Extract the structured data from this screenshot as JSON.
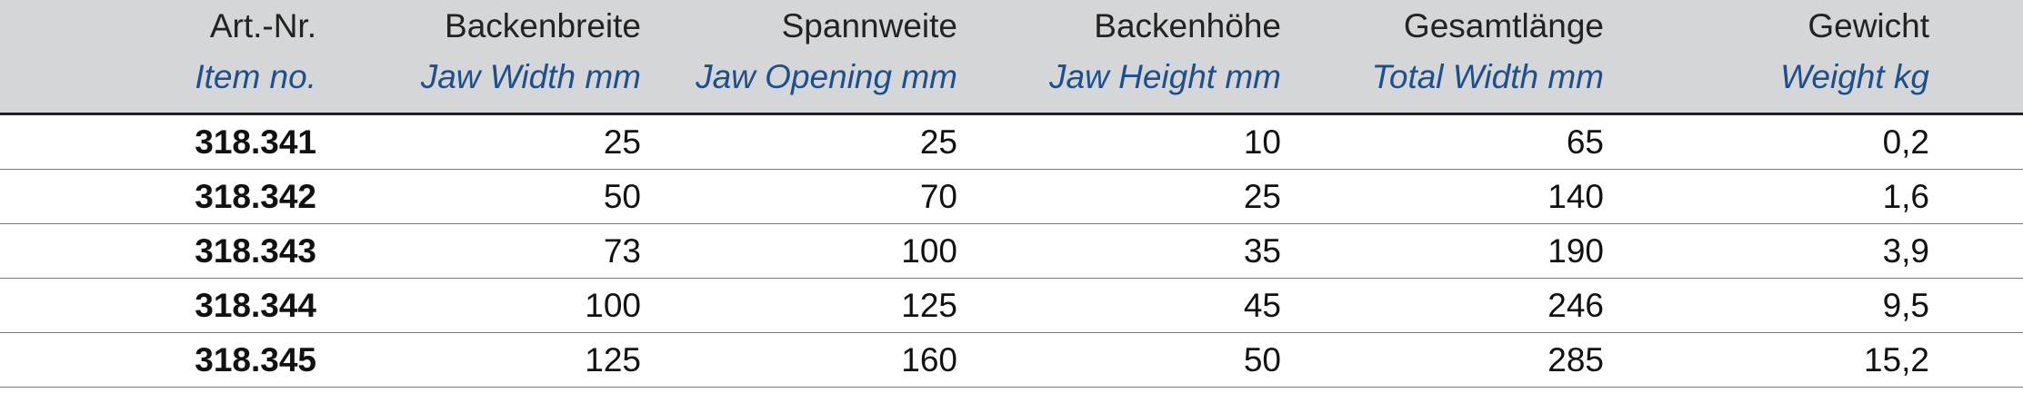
{
  "table": {
    "columns": [
      {
        "de": "Art.-Nr.",
        "en": "Item no."
      },
      {
        "de": "Backenbreite",
        "en": "Jaw Width mm"
      },
      {
        "de": "Spannweite",
        "en": "Jaw Opening mm"
      },
      {
        "de": "Backenhöhe",
        "en": "Jaw Height mm"
      },
      {
        "de": "Gesamtlänge",
        "en": "Total Width mm"
      },
      {
        "de": "Gewicht",
        "en": "Weight kg"
      }
    ],
    "rows": [
      [
        "318.341",
        "25",
        "25",
        "10",
        "65",
        "0,2"
      ],
      [
        "318.342",
        "50",
        "70",
        "25",
        "140",
        "1,6"
      ],
      [
        "318.343",
        "73",
        "100",
        "35",
        "190",
        "3,9"
      ],
      [
        "318.344",
        "100",
        "125",
        "45",
        "246",
        "9,5"
      ],
      [
        "318.345",
        "125",
        "160",
        "50",
        "285",
        "15,2"
      ]
    ]
  }
}
